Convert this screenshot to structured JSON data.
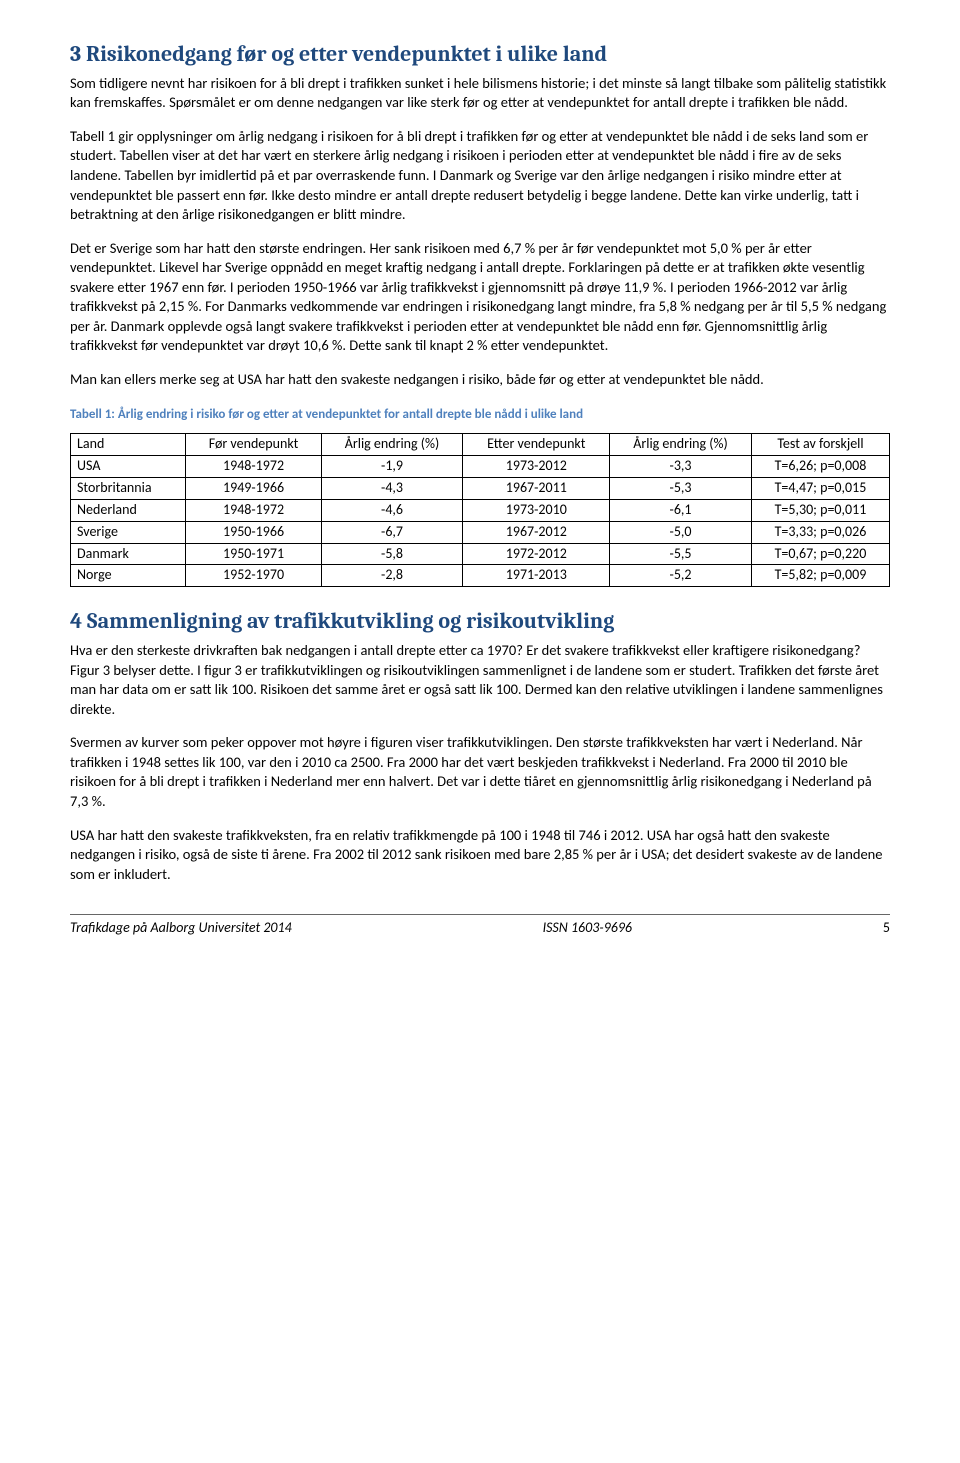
{
  "section3": {
    "heading": "3 Risikonedgang før og etter vendepunktet i ulike land",
    "para1": "Som tidligere nevnt har risikoen for å bli drept i trafikken sunket i hele bilismens historie; i det minste så langt tilbake som pålitelig statistikk kan fremskaffes. Spørsmålet er om denne nedgangen var like sterk før og etter at vendepunktet for antall drepte i trafikken ble nådd.",
    "para2": "Tabell 1 gir opplysninger om årlig nedgang i risikoen for å bli drept i trafikken før og etter at vendepunktet ble nådd i de seks land som er studert. Tabellen viser at det har vært en sterkere årlig nedgang i risikoen i perioden etter at vendepunktet ble nådd i fire av de seks landene. Tabellen byr imidlertid på et par overraskende funn. I Danmark og Sverige var den årlige nedgangen i risiko mindre etter at vendepunktet ble passert enn før. Ikke desto mindre er antall drepte redusert betydelig i begge landene. Dette kan virke underlig, tatt i betraktning at den årlige risikonedgangen er blitt mindre.",
    "para3": "Det er Sverige som har hatt den største endringen. Her sank risikoen med 6,7 % per år før vendepunktet mot 5,0 % per år etter vendepunktet. Likevel har Sverige oppnådd en meget kraftig nedgang i antall drepte. Forklaringen på dette er at trafikken økte vesentlig svakere etter 1967 enn før. I perioden 1950-1966 var årlig trafikkvekst i gjennomsnitt på drøye 11,9 %. I perioden 1966-2012 var årlig trafikkvekst på 2,15 %. For Danmarks vedkommende var endringen i risikonedgang langt mindre, fra 5,8 % nedgang per år til 5,5 % nedgang per år. Danmark opplevde også langt svakere trafikkvekst i perioden etter at vendepunktet ble nådd enn før. Gjennomsnittlig årlig trafikkvekst før vendepunktet var drøyt 10,6 %. Dette sank til knapt 2 % etter vendepunktet.",
    "para4": "Man kan ellers merke seg at USA har hatt den svakeste nedgangen i risiko, både før og etter at vendepunktet ble nådd."
  },
  "table1": {
    "caption": "Tabell 1: Årlig endring i risiko før og etter at vendepunktet for antall drepte ble nådd i ulike land",
    "headers": [
      "Land",
      "Før vendepunkt",
      "Årlig endring (%)",
      "Etter vendepunkt",
      "Årlig endring (%)",
      "Test av forskjell"
    ],
    "rows": [
      [
        "USA",
        "1948-1972",
        "-1,9",
        "1973-2012",
        "-3,3",
        "T=6,26; p=0,008"
      ],
      [
        "Storbritannia",
        "1949-1966",
        "-4,3",
        "1967-2011",
        "-5,3",
        "T=4,47; p=0,015"
      ],
      [
        "Nederland",
        "1948-1972",
        "-4,6",
        "1973-2010",
        "-6,1",
        "T=5,30; p=0,011"
      ],
      [
        "Sverige",
        "1950-1966",
        "-6,7",
        "1967-2012",
        "-5,0",
        "T=3,33; p=0,026"
      ],
      [
        "Danmark",
        "1950-1971",
        "-5,8",
        "1972-2012",
        "-5,5",
        "T=0,67; p=0,220"
      ],
      [
        "Norge",
        "1952-1970",
        "-2,8",
        "1971-2013",
        "-5,2",
        "T=5,82; p=0,009"
      ]
    ],
    "col_align": [
      "left",
      "center",
      "center",
      "center",
      "center",
      "center"
    ]
  },
  "section4": {
    "heading": "4 Sammenligning av trafikkutvikling og risikoutvikling",
    "para1": "Hva er den sterkeste drivkraften bak nedgangen i antall drepte etter ca 1970? Er det svakere trafikkvekst eller kraftigere risikonedgang? Figur 3 belyser dette. I figur 3 er trafikkutviklingen og risikoutviklingen sammenlignet i de landene som er studert. Trafikken det første året man har data om er satt lik 100. Risikoen det samme året er også satt lik 100. Dermed kan den relative utviklingen i landene sammenlignes direkte.",
    "para2": "Svermen av kurver som peker oppover mot høyre i figuren viser trafikkutviklingen. Den største trafikkveksten har vært i Nederland. Når trafikken i 1948 settes lik 100, var den i 2010 ca 2500. Fra 2000 har det vært beskjeden trafikkvekst i Nederland. Fra 2000 til 2010 ble risikoen for å bli drept i trafikken i Nederland mer enn halvert. Det var i dette tiåret en gjennomsnittlig årlig risikonedgang i Nederland på 7,3 %.",
    "para3": "USA har hatt den svakeste trafikkveksten, fra en relativ trafikkmengde på 100 i 1948 til 746 i 2012. USA har også hatt den svakeste nedgangen i risiko, også de siste ti årene. Fra 2002 til 2012 sank risikoen med bare 2,85 % per år i USA; det desidert svakeste av de landene som er inkludert."
  },
  "footer": {
    "left": "Trafikdage på Aalborg Universitet 2014",
    "middle": "ISSN 1603-9696",
    "page": "5"
  }
}
